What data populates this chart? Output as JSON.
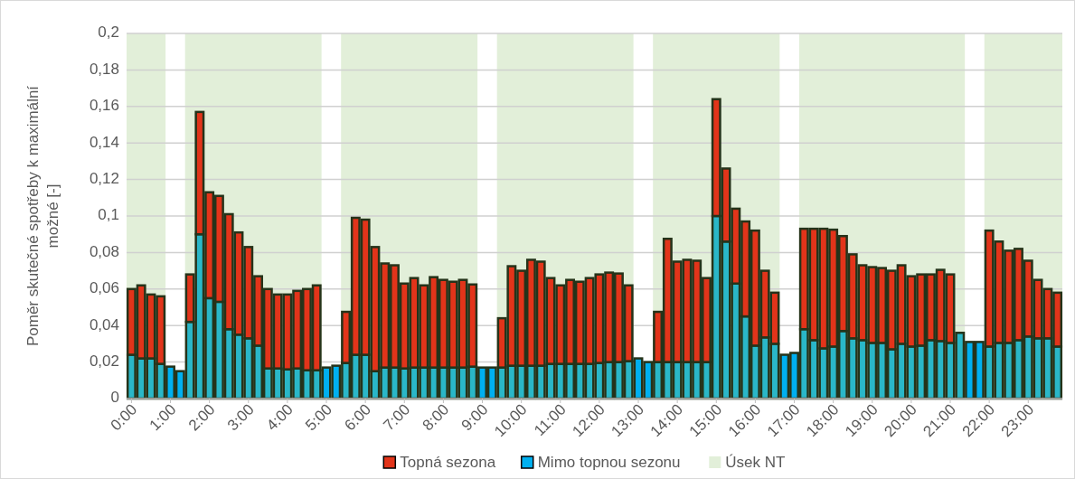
{
  "chart_data": {
    "type": "bar",
    "stacked": true,
    "ylabel": "Poměr skutečné spotřeby k maximální možné [-]",
    "x": [
      0,
      0.25,
      0.5,
      0.75,
      1,
      1.25,
      1.5,
      1.75,
      2,
      2.25,
      2.5,
      2.75,
      3,
      3.25,
      3.5,
      3.75,
      4,
      4.25,
      4.5,
      4.75,
      5,
      5.25,
      5.5,
      5.75,
      6,
      6.25,
      6.5,
      6.75,
      7,
      7.25,
      7.5,
      7.75,
      8,
      8.25,
      8.5,
      8.75,
      9,
      9.25,
      9.5,
      9.75,
      10,
      10.25,
      10.5,
      10.75,
      11,
      11.25,
      11.5,
      11.75,
      12,
      12.25,
      12.5,
      12.75,
      13,
      13.25,
      13.5,
      13.75,
      14,
      14.25,
      14.5,
      14.75,
      15,
      15.25,
      15.5,
      15.75,
      16,
      16.25,
      16.5,
      16.75,
      17,
      17.25,
      17.5,
      17.75,
      18,
      18.25,
      18.5,
      18.75,
      19,
      19.25,
      19.5,
      19.75,
      20,
      20.25,
      20.5,
      20.75,
      21,
      21.25,
      21.5,
      21.75,
      22,
      22.25,
      22.5,
      22.75,
      23,
      23.25,
      23.5,
      23.75
    ],
    "xlim": [
      -0.125,
      23.875
    ],
    "xticks": [
      {
        "value": 0,
        "label": "0:00"
      },
      {
        "value": 1,
        "label": "1:00"
      },
      {
        "value": 2,
        "label": "2:00"
      },
      {
        "value": 3,
        "label": "3:00"
      },
      {
        "value": 4,
        "label": "4:00"
      },
      {
        "value": 5,
        "label": "5:00"
      },
      {
        "value": 6,
        "label": "6:00"
      },
      {
        "value": 7,
        "label": "7:00"
      },
      {
        "value": 8,
        "label": "8:00"
      },
      {
        "value": 9,
        "label": "9:00"
      },
      {
        "value": 10,
        "label": "10:00"
      },
      {
        "value": 11,
        "label": "11:00"
      },
      {
        "value": 12,
        "label": "12:00"
      },
      {
        "value": 13,
        "label": "13:00"
      },
      {
        "value": 14,
        "label": "14:00"
      },
      {
        "value": 15,
        "label": "15:00"
      },
      {
        "value": 16,
        "label": "16:00"
      },
      {
        "value": 17,
        "label": "17:00"
      },
      {
        "value": 18,
        "label": "18:00"
      },
      {
        "value": 19,
        "label": "19:00"
      },
      {
        "value": 20,
        "label": "20:00"
      },
      {
        "value": 21,
        "label": "21:00"
      },
      {
        "value": 22,
        "label": "22:00"
      },
      {
        "value": 23,
        "label": "23:00"
      }
    ],
    "ylim": [
      0,
      0.2
    ],
    "yticks": [
      0,
      {
        "value": 0.02,
        "label": "0,02"
      },
      {
        "value": 0.04,
        "label": "0,04"
      },
      {
        "value": 0.06,
        "label": "0,06"
      },
      {
        "value": 0.08,
        "label": "0,08"
      },
      {
        "value": 0.1,
        "label": "0,1"
      },
      {
        "value": 0.12,
        "label": "0,12"
      },
      {
        "value": 0.14,
        "label": "0,14"
      },
      {
        "value": 0.16,
        "label": "0,16"
      },
      {
        "value": 0.18,
        "label": "0,18"
      },
      {
        "value": 0.2,
        "label": "0,2"
      }
    ],
    "grid": "y",
    "legend": "bottom",
    "series": [
      {
        "name": "Mimo topnou sezonu",
        "color": "#00b0f0",
        "colors": [
          "#2ab7c8",
          "#2ab7c8",
          "#2ab7c8",
          "#2ab7c8",
          "#00b0f0",
          "#00b0f0",
          "#2ab7c8",
          "#2ab7c8",
          "#2ab7c8",
          "#2ab7c8",
          "#2ab7c8",
          "#2ab7c8",
          "#2ab7c8",
          "#2ab7c8",
          "#2ab7c8",
          "#2ab7c8",
          "#2ab7c8",
          "#2ab7c8",
          "#2ab7c8",
          "#2ab7c8",
          "#00b0f0",
          "#00b0f0",
          "#2ab7c8",
          "#2ab7c8",
          "#2ab7c8",
          "#2ab7c8",
          "#2ab7c8",
          "#2ab7c8",
          "#2ab7c8",
          "#2ab7c8",
          "#2ab7c8",
          "#2ab7c8",
          "#2ab7c8",
          "#2ab7c8",
          "#2ab7c8",
          "#2ab7c8",
          "#00b0f0",
          "#00b0f0",
          "#2ab7c8",
          "#2ab7c8",
          "#2ab7c8",
          "#2ab7c8",
          "#2ab7c8",
          "#2ab7c8",
          "#2ab7c8",
          "#2ab7c8",
          "#2ab7c8",
          "#2ab7c8",
          "#2ab7c8",
          "#2ab7c8",
          "#2ab7c8",
          "#2ab7c8",
          "#00b0f0",
          "#00b0f0",
          "#2ab7c8",
          "#2ab7c8",
          "#2ab7c8",
          "#2ab7c8",
          "#2ab7c8",
          "#2ab7c8",
          "#2ab7c8",
          "#2ab7c8",
          "#2ab7c8",
          "#2ab7c8",
          "#2ab7c8",
          "#2ab7c8",
          "#2ab7c8",
          "#00b0f0",
          "#00b0f0",
          "#2ab7c8",
          "#2ab7c8",
          "#2ab7c8",
          "#2ab7c8",
          "#2ab7c8",
          "#2ab7c8",
          "#2ab7c8",
          "#2ab7c8",
          "#2ab7c8",
          "#2ab7c8",
          "#2ab7c8",
          "#2ab7c8",
          "#2ab7c8",
          "#2ab7c8",
          "#2ab7c8",
          "#2ab7c8",
          "#2ab7c8",
          "#00b0f0",
          "#00b0f0",
          "#2ab7c8",
          "#2ab7c8",
          "#2ab7c8",
          "#2ab7c8",
          "#2ab7c8",
          "#2ab7c8",
          "#2ab7c8",
          "#2ab7c8"
        ],
        "values": [
          0.024,
          0.022,
          0.022,
          0.019,
          0.0175,
          0.015,
          0.042,
          0.09,
          0.055,
          0.053,
          0.038,
          0.035,
          0.033,
          0.029,
          0.0165,
          0.0165,
          0.016,
          0.0165,
          0.0155,
          0.0155,
          0.017,
          0.018,
          0.0195,
          0.024,
          0.024,
          0.015,
          0.017,
          0.017,
          0.0165,
          0.017,
          0.017,
          0.017,
          0.017,
          0.017,
          0.017,
          0.0175,
          0.017,
          0.017,
          0.017,
          0.018,
          0.018,
          0.018,
          0.018,
          0.019,
          0.019,
          0.019,
          0.019,
          0.019,
          0.0195,
          0.02,
          0.02,
          0.0205,
          0.022,
          0.02,
          0.02,
          0.02,
          0.02,
          0.02,
          0.02,
          0.02,
          0.1,
          0.086,
          0.063,
          0.045,
          0.029,
          0.0335,
          0.03,
          0.024,
          0.025,
          0.038,
          0.032,
          0.0275,
          0.0285,
          0.037,
          0.033,
          0.032,
          0.0305,
          0.0305,
          0.027,
          0.03,
          0.0285,
          0.029,
          0.032,
          0.0315,
          0.0305,
          0.036,
          0.031,
          0.031,
          0.0285,
          0.0305,
          0.0305,
          0.032,
          0.034,
          0.033,
          0.033,
          0.0285
        ]
      },
      {
        "name": "Topná sezona",
        "color": "#e2341a",
        "values": [
          0.036,
          0.04,
          0.035,
          0.037,
          null,
          null,
          0.026,
          0.067,
          0.058,
          0.058,
          0.063,
          0.056,
          0.05,
          0.038,
          0.0435,
          0.0405,
          0.041,
          0.0425,
          0.0445,
          0.0465,
          null,
          null,
          0.028,
          0.075,
          0.074,
          0.068,
          0.057,
          0.056,
          0.0465,
          0.049,
          0.045,
          0.0495,
          0.048,
          0.047,
          0.048,
          0.045,
          null,
          null,
          0.027,
          0.0545,
          0.052,
          0.058,
          0.057,
          0.047,
          0.043,
          0.046,
          0.045,
          0.047,
          0.0485,
          0.049,
          0.0485,
          0.0415,
          null,
          null,
          0.0275,
          0.0675,
          0.055,
          0.056,
          0.0555,
          0.046,
          0.064,
          0.04,
          0.041,
          0.052,
          0.063,
          0.0365,
          0.028,
          null,
          null,
          0.055,
          0.061,
          0.0655,
          0.064,
          0.052,
          0.046,
          0.041,
          0.0415,
          0.041,
          0.043,
          0.043,
          0.0385,
          0.039,
          0.036,
          0.039,
          0.0375,
          null,
          null,
          null,
          0.0635,
          0.0555,
          0.0505,
          0.05,
          0.0415,
          0.032,
          0.027,
          0.0295
        ]
      }
    ],
    "bands": [
      {
        "axis": "x",
        "from": -0.125,
        "to": 0.875,
        "label": "Úsek NT",
        "color": "#e2efd9"
      },
      {
        "axis": "x",
        "from": 1.375,
        "to": 4.875,
        "color": "#e2efd9"
      },
      {
        "axis": "x",
        "from": 5.375,
        "to": 8.875,
        "color": "#e2efd9"
      },
      {
        "axis": "x",
        "from": 9.375,
        "to": 12.875,
        "color": "#e2efd9"
      },
      {
        "axis": "x",
        "from": 13.375,
        "to": 16.625,
        "color": "#e2efd9"
      },
      {
        "axis": "x",
        "from": 17.125,
        "to": 21.375,
        "color": "#e2efd9"
      },
      {
        "axis": "x",
        "from": 21.875,
        "to": 23.875,
        "color": "#e2efd9"
      }
    ]
  }
}
